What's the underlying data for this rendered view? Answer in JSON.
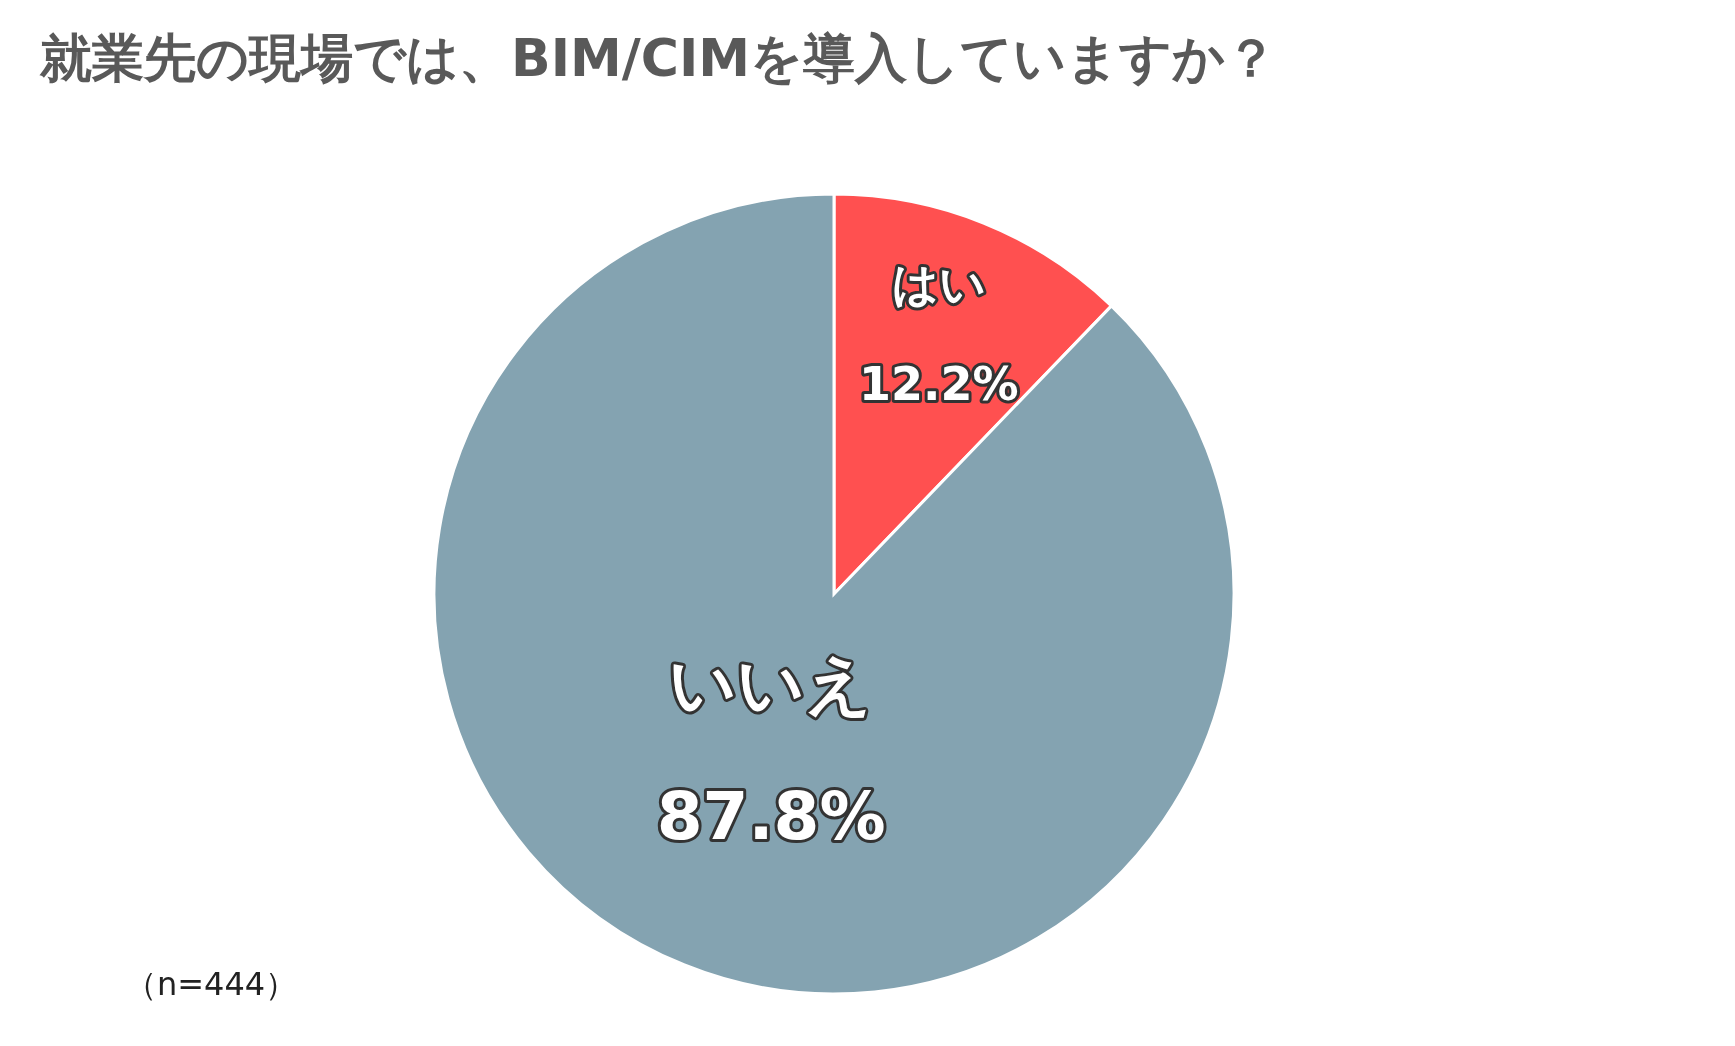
{
  "chart_data": {
    "type": "pie",
    "title": "就業先の現場では、BIM/CIMを導入していますか？",
    "categories": [
      "はい",
      "いいえ"
    ],
    "values": [
      12.2,
      87.8
    ],
    "value_labels": [
      "12.2%",
      "87.8%"
    ],
    "colors": [
      "#ff5050",
      "#84a3b1"
    ],
    "annotations": [
      "（n=444）"
    ]
  }
}
